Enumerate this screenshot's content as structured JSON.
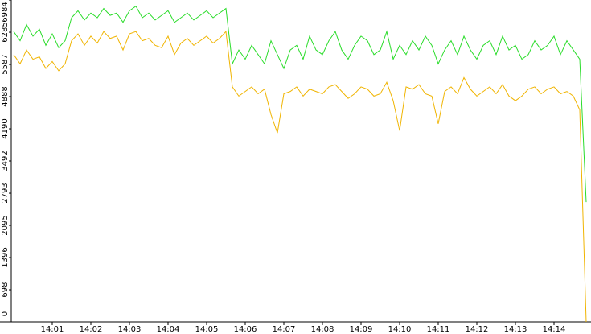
{
  "chart_data": {
    "type": "line",
    "categories": [
      null,
      null,
      null,
      null,
      null,
      null,
      "14:01",
      null,
      null,
      null,
      null,
      null,
      "14:02",
      null,
      null,
      null,
      null,
      null,
      "14:03",
      null,
      null,
      null,
      null,
      null,
      "14:04",
      null,
      null,
      null,
      null,
      null,
      "14:05",
      null,
      null,
      null,
      null,
      null,
      "14:06",
      null,
      null,
      null,
      null,
      null,
      "14:07",
      null,
      null,
      null,
      null,
      null,
      "14:08",
      null,
      null,
      null,
      null,
      null,
      "14:09",
      null,
      null,
      null,
      null,
      null,
      "14:10",
      null,
      null,
      null,
      null,
      null,
      "14:11",
      null,
      null,
      null,
      null,
      null,
      "14:12",
      null,
      null,
      null,
      null,
      null,
      "14:13",
      null,
      null,
      null,
      null,
      null,
      "14:14",
      null,
      null,
      null,
      null,
      null
    ],
    "series": [
      {
        "color": "#2adc2a",
        "values": [
          6300,
          6100,
          6450,
          6200,
          6350,
          6000,
          6250,
          5950,
          6100,
          6600,
          6750,
          6550,
          6700,
          6600,
          6800,
          6650,
          6700,
          6500,
          6750,
          6850,
          6600,
          6700,
          6550,
          6650,
          6750,
          6500,
          6600,
          6700,
          6550,
          6650,
          6750,
          6600,
          6700,
          6800,
          5600,
          5900,
          5700,
          6000,
          5800,
          5600,
          6100,
          5800,
          5500,
          5900,
          6000,
          5700,
          6200,
          5900,
          5800,
          6100,
          6300,
          5900,
          5700,
          6000,
          6200,
          6100,
          5800,
          5900,
          6300,
          5700,
          6000,
          5800,
          6100,
          5900,
          6200,
          6000,
          5600,
          5900,
          6100,
          5800,
          6200,
          5900,
          5700,
          6000,
          6100,
          5800,
          6200,
          5900,
          6000,
          5700,
          5800,
          6100,
          5900,
          6000,
          6200,
          5800,
          6100,
          5900,
          5700,
          2600
        ]
      },
      {
        "color": "#f0b400",
        "values": [
          5800,
          5600,
          5900,
          5700,
          5750,
          5500,
          5650,
          5450,
          5600,
          6100,
          6250,
          6000,
          6200,
          6050,
          6300,
          6150,
          6200,
          5900,
          6250,
          6300,
          6100,
          6150,
          6000,
          5950,
          6200,
          5800,
          6050,
          6150,
          6000,
          6100,
          6200,
          6050,
          6150,
          6300,
          5100,
          4900,
          5000,
          5100,
          4950,
          5050,
          4500,
          4100,
          4950,
          5000,
          5100,
          4900,
          5050,
          5000,
          4950,
          5100,
          5150,
          5000,
          4850,
          4950,
          5100,
          5050,
          4900,
          4950,
          5200,
          4800,
          4150,
          5100,
          5050,
          5150,
          4950,
          4900,
          4300,
          5000,
          5100,
          4950,
          5300,
          5050,
          4900,
          5000,
          5100,
          4950,
          5150,
          4900,
          4800,
          4900,
          5050,
          5100,
          4950,
          5050,
          5100,
          4950,
          5000,
          4900,
          4600,
          0
        ]
      }
    ],
    "ylim": [
      0,
      6984
    ],
    "yticks": [
      0,
      698,
      1396,
      2095,
      2793,
      3492,
      4190,
      4888,
      5587,
      6285,
      6984
    ]
  }
}
